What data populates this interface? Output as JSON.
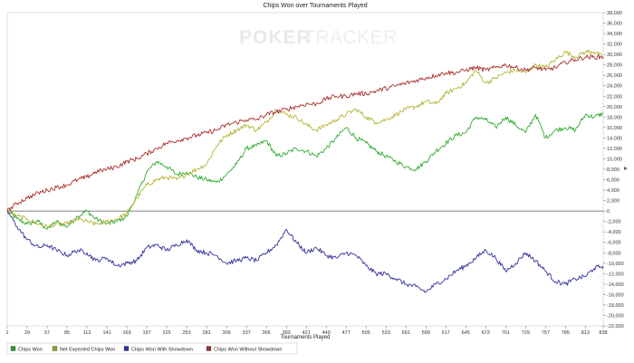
{
  "chart_data": {
    "type": "line",
    "title": "Chips Won over Tournaments Played",
    "xlabel": "Tournaments Played",
    "ylabel": "",
    "watermark": {
      "part1": "POKER",
      "part2": "TRACKER"
    },
    "x_ticks": [
      1,
      29,
      57,
      85,
      113,
      141,
      169,
      197,
      225,
      253,
      281,
      309,
      337,
      365,
      393,
      421,
      449,
      477,
      505,
      533,
      561,
      589,
      617,
      645,
      673,
      701,
      729,
      757,
      785,
      813,
      838
    ],
    "xlim": [
      1,
      838
    ],
    "ylim": [
      -22000,
      38000
    ],
    "y_ticks": [
      -22000,
      -20000,
      -18000,
      -16000,
      -14000,
      -12000,
      -10000,
      -8000,
      -6000,
      -4000,
      -2000,
      0,
      2000,
      4000,
      6000,
      8000,
      10000,
      12000,
      14000,
      16000,
      18000,
      20000,
      22000,
      24000,
      26000,
      28000,
      30000,
      32000,
      34000,
      36000,
      38000
    ],
    "y_tick_labels": [
      "-22,000",
      "-20,000",
      "-18,000",
      "-16,000",
      "-14,000",
      "-12,000",
      "-10,000",
      "-8,000",
      "-6,000",
      "-4,000",
      "-2,000",
      "0",
      "2,000",
      "4,000",
      "6,000",
      "8,000",
      "10,000",
      "12,000",
      "14,000",
      "16,000",
      "18,000",
      "20,000",
      "22,000",
      "24,000",
      "26,000",
      "28,000",
      "30,000",
      "32,000",
      "34,000",
      "36,000",
      "38,000"
    ],
    "grid": false,
    "zero_line": true,
    "legend_position": "bottom-left",
    "series": [
      {
        "name": "Chips Won",
        "color": "#33aa33",
        "legend_color": "#339933",
        "x": [
          1,
          15,
          29,
          45,
          57,
          70,
          85,
          100,
          113,
          125,
          141,
          155,
          169,
          183,
          197,
          211,
          225,
          239,
          253,
          267,
          281,
          295,
          309,
          323,
          337,
          351,
          365,
          379,
          393,
          407,
          421,
          435,
          449,
          463,
          477,
          491,
          505,
          519,
          533,
          547,
          561,
          575,
          589,
          603,
          617,
          631,
          645,
          659,
          673,
          687,
          701,
          715,
          729,
          743,
          757,
          771,
          785,
          799,
          813,
          825,
          838
        ],
        "y": [
          0,
          -1500,
          -2500,
          -2000,
          -3500,
          -2000,
          -3000,
          -1000,
          0,
          -1500,
          -2500,
          -2000,
          -1000,
          3000,
          7500,
          9500,
          8500,
          7000,
          7500,
          6500,
          6000,
          5500,
          7000,
          9000,
          12000,
          12500,
          13500,
          10500,
          11000,
          12000,
          11500,
          10500,
          12000,
          14000,
          16000,
          14000,
          13000,
          11500,
          10500,
          9500,
          8500,
          8000,
          9500,
          11500,
          13000,
          14500,
          15000,
          18000,
          17500,
          16000,
          18000,
          16500,
          15000,
          18500,
          14000,
          15500,
          16000,
          15500,
          18500,
          18000,
          18700
        ]
      },
      {
        "name": "Net Expected Chips Won",
        "color": "#b5b53a",
        "legend_color": "#999933",
        "x": [
          1,
          15,
          29,
          45,
          57,
          70,
          85,
          100,
          113,
          125,
          141,
          155,
          169,
          183,
          197,
          211,
          225,
          239,
          253,
          267,
          281,
          295,
          309,
          323,
          337,
          351,
          365,
          379,
          393,
          407,
          421,
          435,
          449,
          463,
          477,
          491,
          505,
          519,
          533,
          547,
          561,
          575,
          589,
          603,
          617,
          631,
          645,
          659,
          673,
          687,
          701,
          715,
          729,
          743,
          757,
          771,
          785,
          799,
          813,
          825,
          838
        ],
        "y": [
          0,
          -1000,
          -1500,
          -2500,
          -3000,
          -2500,
          -2500,
          -1500,
          -2000,
          -2500,
          -2000,
          -1500,
          -500,
          2500,
          5000,
          6000,
          6500,
          6000,
          7000,
          8000,
          9000,
          12500,
          14500,
          15500,
          16500,
          15500,
          17000,
          19500,
          18500,
          18000,
          16500,
          15500,
          16500,
          17500,
          18500,
          19500,
          18000,
          17000,
          17500,
          18500,
          19500,
          20000,
          21000,
          20500,
          22500,
          23500,
          24500,
          27000,
          24500,
          25500,
          26500,
          27000,
          26500,
          28000,
          27500,
          29000,
          30500,
          29500,
          30500,
          30500,
          29500
        ]
      },
      {
        "name": "Chips Won With Showdown",
        "color": "#33339b",
        "legend_color": "#333399",
        "x": [
          1,
          15,
          29,
          45,
          57,
          70,
          85,
          100,
          113,
          125,
          141,
          155,
          169,
          183,
          197,
          211,
          225,
          239,
          253,
          267,
          281,
          295,
          309,
          323,
          337,
          351,
          365,
          379,
          393,
          407,
          421,
          435,
          449,
          463,
          477,
          491,
          505,
          519,
          533,
          547,
          561,
          575,
          589,
          603,
          617,
          631,
          645,
          659,
          673,
          687,
          701,
          715,
          729,
          743,
          757,
          771,
          785,
          799,
          813,
          825,
          838
        ],
        "y": [
          0,
          -3000,
          -5500,
          -7000,
          -6500,
          -7500,
          -8500,
          -7500,
          -8000,
          -9500,
          -9000,
          -10500,
          -10000,
          -9500,
          -7000,
          -6500,
          -7500,
          -6500,
          -5500,
          -7500,
          -8000,
          -8500,
          -10000,
          -9500,
          -9000,
          -9500,
          -8000,
          -6500,
          -3500,
          -6000,
          -8000,
          -7000,
          -8500,
          -9000,
          -8000,
          -8500,
          -10500,
          -12000,
          -12000,
          -13000,
          -14000,
          -14500,
          -15500,
          -14000,
          -13000,
          -11500,
          -10500,
          -9000,
          -7500,
          -9000,
          -11500,
          -10000,
          -8000,
          -9500,
          -11500,
          -13500,
          -14000,
          -13000,
          -12500,
          -11000,
          -10500
        ]
      },
      {
        "name": "Chips Won Without Showdown",
        "color": "#aa2e2e",
        "legend_color": "#993333",
        "x": [
          1,
          15,
          29,
          45,
          57,
          70,
          85,
          100,
          113,
          125,
          141,
          155,
          169,
          183,
          197,
          211,
          225,
          239,
          253,
          267,
          281,
          295,
          309,
          323,
          337,
          351,
          365,
          379,
          393,
          407,
          421,
          435,
          449,
          463,
          477,
          491,
          505,
          519,
          533,
          547,
          561,
          575,
          589,
          603,
          617,
          631,
          645,
          659,
          673,
          687,
          701,
          715,
          729,
          743,
          757,
          771,
          785,
          799,
          813,
          825,
          838
        ],
        "y": [
          0,
          1500,
          2500,
          3500,
          4000,
          4500,
          5000,
          6000,
          6500,
          7500,
          8000,
          8500,
          9500,
          10000,
          11000,
          12000,
          13000,
          13500,
          14000,
          14500,
          15000,
          15500,
          16500,
          17000,
          17500,
          17500,
          18500,
          19000,
          19500,
          20000,
          20500,
          20500,
          21500,
          22000,
          22000,
          22500,
          22500,
          23000,
          23500,
          24000,
          24500,
          25000,
          25500,
          26000,
          26500,
          26500,
          27000,
          27500,
          27000,
          27500,
          28000,
          27500,
          27000,
          27500,
          27000,
          27500,
          28500,
          29000,
          29500,
          29500,
          29500
        ]
      }
    ]
  }
}
